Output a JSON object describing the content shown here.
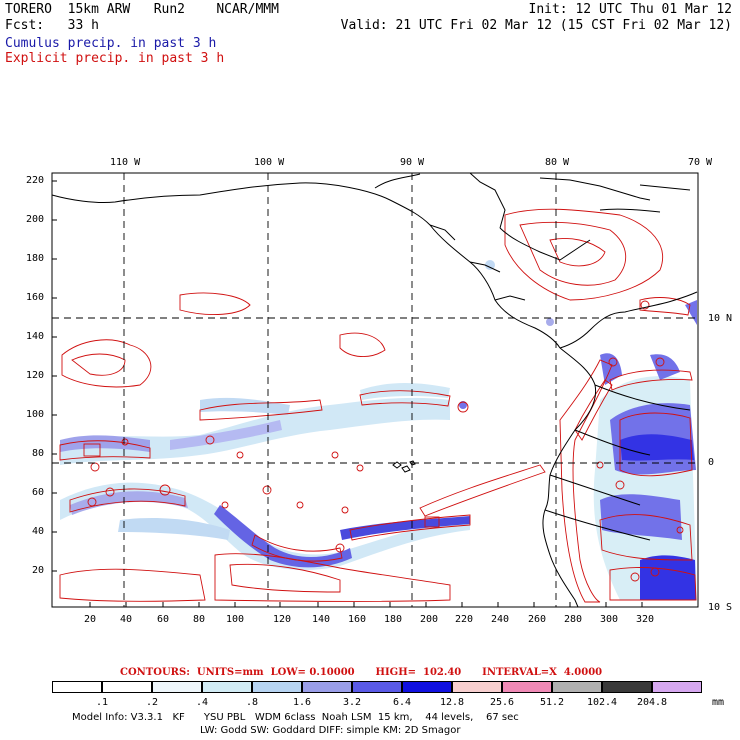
{
  "header": {
    "line1_left": "TORERO  15km ARW   Run2    NCAR/MMM",
    "line1_right": "Init: 12 UTC Thu 01 Mar 12",
    "line2_left": "Fcst:   33 h",
    "line2_right": "Valid: 21 UTC Fri 02 Mar 12 (15 CST Fri 02 Mar 12)",
    "field_cumulus": "Cumulus precip. in past 3 h",
    "field_explicit": "Explicit precip. in past 3 h"
  },
  "colors": {
    "cumulus": "#1a1aa8",
    "explicit": "#d01010",
    "coast": "#000000",
    "grid": "#000000"
  },
  "map": {
    "lon_labels": [
      "110 W",
      "100 W",
      "90 W",
      "80 W",
      "70 W"
    ],
    "lat_labels": [
      "10 N",
      "0",
      "10 S"
    ],
    "y_ticks": [
      "220",
      "200",
      "180",
      "160",
      "140",
      "120",
      "100",
      "80",
      "60",
      "40",
      "20"
    ],
    "x_ticks": [
      "20",
      "40",
      "60",
      "80",
      "100",
      "120",
      "140",
      "160",
      "180",
      "200",
      "220",
      "240",
      "260",
      "280",
      "300",
      "320"
    ]
  },
  "contours": {
    "label": "CONTOURS:  UNITS=mm  LOW= 0.10000      HIGH=  102.40      INTERVAL=X  4.0000"
  },
  "colorbar": {
    "unit": "mm",
    "values": [
      ".1",
      ".2",
      ".4",
      ".8",
      "1.6",
      "3.2",
      "6.4",
      "12.8",
      "25.6",
      "51.2",
      "102.4",
      "204.8"
    ],
    "colors": [
      "#ffffff",
      "#ffffff",
      "#eef6fb",
      "#d2ecf5",
      "#b7d4f2",
      "#9a9ee8",
      "#5a5ae6",
      "#1010e0",
      "#f7cfcf",
      "#f08ab6",
      "#b0b0b0",
      "#3a3a3a",
      "#d6a8f0"
    ]
  },
  "footer": {
    "line1": "Model Info: V3.3.1   KF      YSU PBL   WDM 6class  Noah LSM  15 km,    44 levels,    67 sec",
    "line2": "LW: Godd SW: Goddard DIFF: simple KM: 2D Smagor"
  }
}
